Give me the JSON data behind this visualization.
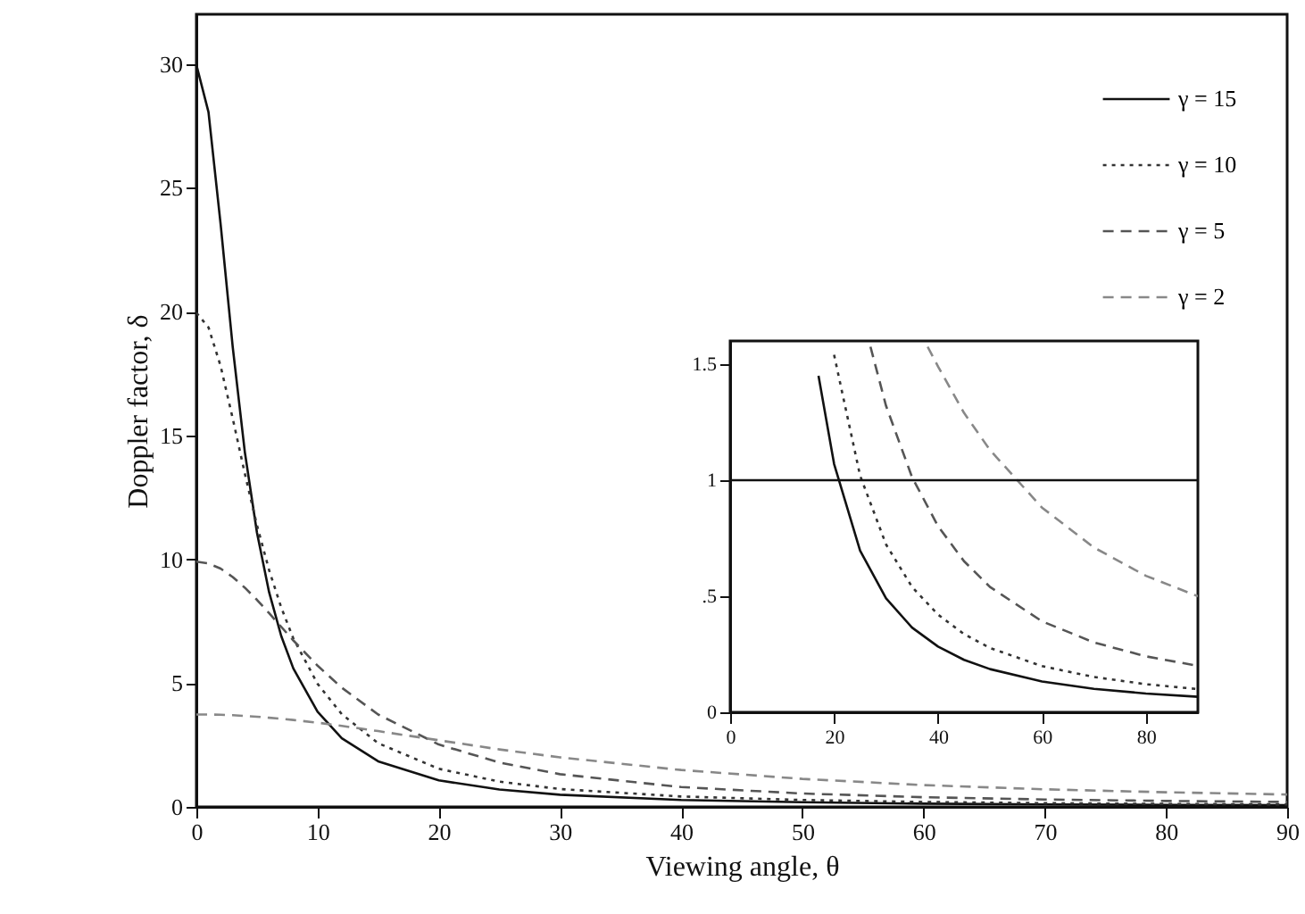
{
  "chart_data": [
    {
      "type": "line",
      "xlabel": "Viewing angle, θ",
      "ylabel": "Doppler factor, δ",
      "xlim": [
        0,
        90
      ],
      "ylim": [
        0,
        32
      ],
      "xticks": [
        0,
        10,
        20,
        30,
        40,
        50,
        60,
        70,
        80,
        90
      ],
      "yticks": [
        0,
        5,
        10,
        15,
        20,
        25,
        30
      ],
      "legend": "top right",
      "x": [
        0,
        1,
        2,
        3,
        4,
        5,
        6,
        7,
        8,
        10,
        12,
        15,
        20,
        25,
        30,
        40,
        50,
        60,
        70,
        80,
        90
      ],
      "series": [
        {
          "name": "γ = 15",
          "color": "#111111",
          "line_style": "solid",
          "values": [
            29.96,
            28.05,
            23.53,
            18.56,
            14.32,
            11.07,
            8.67,
            6.9,
            5.59,
            3.84,
            2.77,
            1.84,
            1.07,
            0.7,
            0.49,
            0.28,
            0.19,
            0.13,
            0.1,
            0.08,
            0.07
          ]
        },
        {
          "name": "γ = 10",
          "color": "#333333",
          "line_style": "dotted",
          "values": [
            19.95,
            19.36,
            17.8,
            15.68,
            13.45,
            11.37,
            9.56,
            8.05,
            6.8,
            4.97,
            3.74,
            2.57,
            1.54,
            1.02,
            0.72,
            0.42,
            0.28,
            0.2,
            0.15,
            0.12,
            0.1
          ]
        },
        {
          "name": "γ = 5",
          "color": "#555555",
          "line_style": "dashed",
          "values": [
            9.9,
            9.83,
            9.62,
            9.28,
            8.85,
            8.36,
            7.82,
            7.27,
            6.72,
            5.7,
            4.81,
            3.73,
            2.52,
            1.79,
            1.32,
            0.8,
            0.54,
            0.39,
            0.3,
            0.24,
            0.2
          ]
        },
        {
          "name": "γ = 2",
          "color": "#888888",
          "line_style": "dashed",
          "values": [
            3.73,
            3.73,
            3.72,
            3.7,
            3.67,
            3.64,
            3.6,
            3.56,
            3.51,
            3.4,
            3.27,
            3.06,
            2.69,
            2.32,
            2.0,
            1.49,
            1.13,
            0.88,
            0.71,
            0.59,
            0.5
          ]
        }
      ]
    },
    {
      "type": "line",
      "xlim": [
        0,
        90
      ],
      "ylim": [
        0,
        1.6
      ],
      "xticks": [
        0,
        20,
        40,
        60,
        80
      ],
      "yticks": [
        0,
        {
          "value": 0.5,
          "label": ".5"
        },
        1,
        1.5
      ],
      "ref_lines": [
        {
          "axis": "y",
          "value": 1,
          "color": "#111111"
        }
      ],
      "series": [
        {
          "color": "#111111",
          "line_style": "solid",
          "x": [
            17,
            20,
            25,
            30,
            35,
            40,
            45,
            50,
            60,
            70,
            80,
            90
          ],
          "values": [
            1.45,
            1.07,
            0.697,
            0.491,
            0.365,
            0.283,
            0.226,
            0.186,
            0.133,
            0.101,
            0.081,
            0.067
          ]
        },
        {
          "color": "#333333",
          "line_style": "dotted",
          "x": [
            20,
            25,
            30,
            35,
            40,
            45,
            50,
            60,
            70,
            80,
            90
          ],
          "values": [
            1.54,
            1.02,
            0.723,
            0.54,
            0.421,
            0.337,
            0.277,
            0.199,
            0.152,
            0.121,
            0.1
          ]
        },
        {
          "color": "#555555",
          "line_style": "dashed",
          "x": [
            27,
            30,
            35,
            40,
            45,
            50,
            60,
            70,
            80,
            90
          ],
          "values": [
            1.575,
            1.32,
            1.013,
            0.802,
            0.651,
            0.54,
            0.392,
            0.301,
            0.241,
            0.2
          ]
        },
        {
          "color": "#888888",
          "line_style": "dashed",
          "x": [
            38,
            40,
            45,
            50,
            60,
            70,
            80,
            90
          ],
          "values": [
            1.575,
            1.49,
            1.29,
            1.13,
            0.882,
            0.71,
            0.588,
            0.5
          ]
        }
      ]
    }
  ]
}
